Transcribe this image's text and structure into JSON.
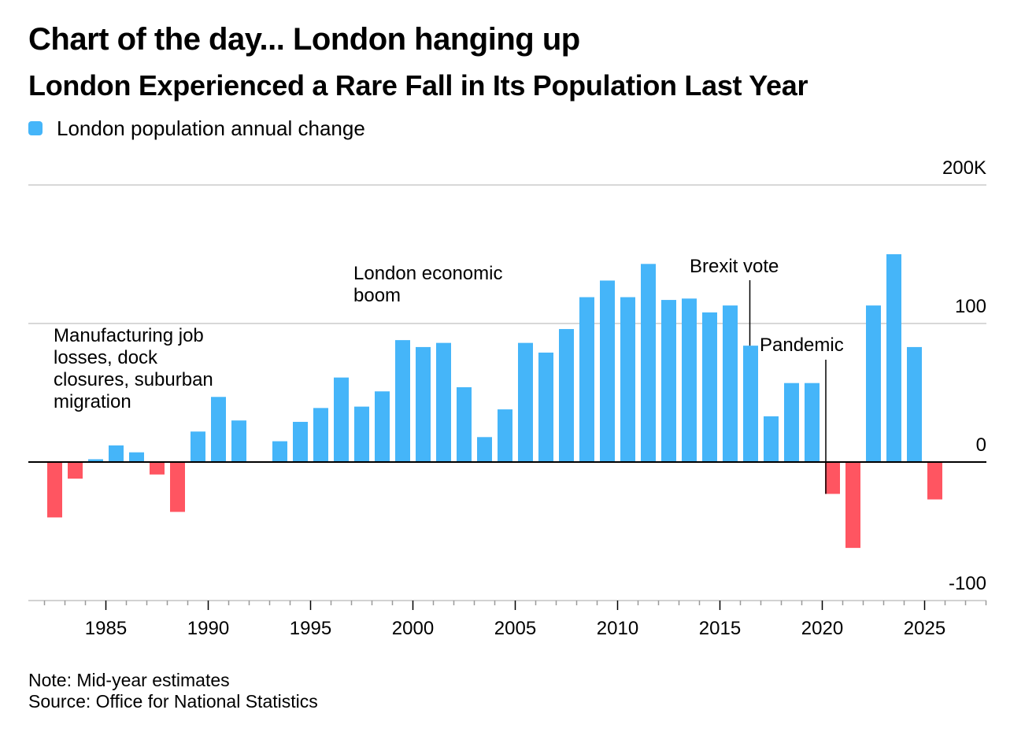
{
  "header": {
    "title": "Chart of the day... London hanging up",
    "subtitle": "London Experienced a Rare Fall in Its Population Last Year"
  },
  "legend": {
    "label": "London population annual change"
  },
  "footer": {
    "note": "Note: Mid-year estimates",
    "source": "Source: Office for National Statistics"
  },
  "colors": {
    "positive": "#45b5f9",
    "negative": "#ff5561",
    "grid": "#cccccc",
    "axis": "#000000"
  },
  "chart_data": {
    "type": "bar",
    "title": "London Experienced a Rare Fall in Its Population Last Year",
    "ylabel": "",
    "xlabel": "",
    "series": [
      {
        "name": "London population annual change",
        "color": "#45b5f9"
      }
    ],
    "years": [
      1982,
      1983,
      1984,
      1985,
      1986,
      1987,
      1988,
      1989,
      1990,
      1991,
      1992,
      1993,
      1994,
      1995,
      1996,
      1997,
      1998,
      1999,
      2000,
      2001,
      2002,
      2003,
      2004,
      2005,
      2006,
      2007,
      2008,
      2009,
      2010,
      2011,
      2012,
      2013,
      2014,
      2015,
      2016,
      2017,
      2018,
      2019,
      2020,
      2021,
      2022,
      2023,
      2024,
      2025
    ],
    "values": [
      -40,
      -12,
      2,
      12,
      7,
      -9,
      -36,
      22,
      47,
      30,
      0,
      15,
      29,
      39,
      61,
      40,
      51,
      88,
      83,
      86,
      54,
      18,
      38,
      86,
      79,
      96,
      119,
      131,
      119,
      143,
      117,
      118,
      108,
      113,
      84,
      33,
      57,
      57,
      -23,
      -62,
      113,
      150,
      83,
      -27
    ],
    "y_ticks": [
      {
        "value": 200,
        "label": "200K"
      },
      {
        "value": 100,
        "label": "100"
      },
      {
        "value": 0,
        "label": "0"
      },
      {
        "value": -100,
        "label": "-100"
      }
    ],
    "x_ticks": [
      1985,
      1990,
      1995,
      2000,
      2005,
      2010,
      2015,
      2020,
      2025
    ],
    "ylim": [
      -100,
      200
    ],
    "xlim": [
      1981.5,
      2028.5
    ],
    "grid": true,
    "legend_position": "top-left",
    "annotations": [
      {
        "name": "manufacturing",
        "lines": [
          "Manufacturing job",
          "losses, dock",
          "closures, suburban",
          "migration"
        ]
      },
      {
        "name": "boom",
        "lines": [
          "London economic",
          "boom"
        ]
      },
      {
        "name": "brexit",
        "lines": [
          "Brexit vote"
        ],
        "year": 2016
      },
      {
        "name": "pandemic",
        "lines": [
          "Pandemic"
        ],
        "year": 2020
      }
    ]
  }
}
